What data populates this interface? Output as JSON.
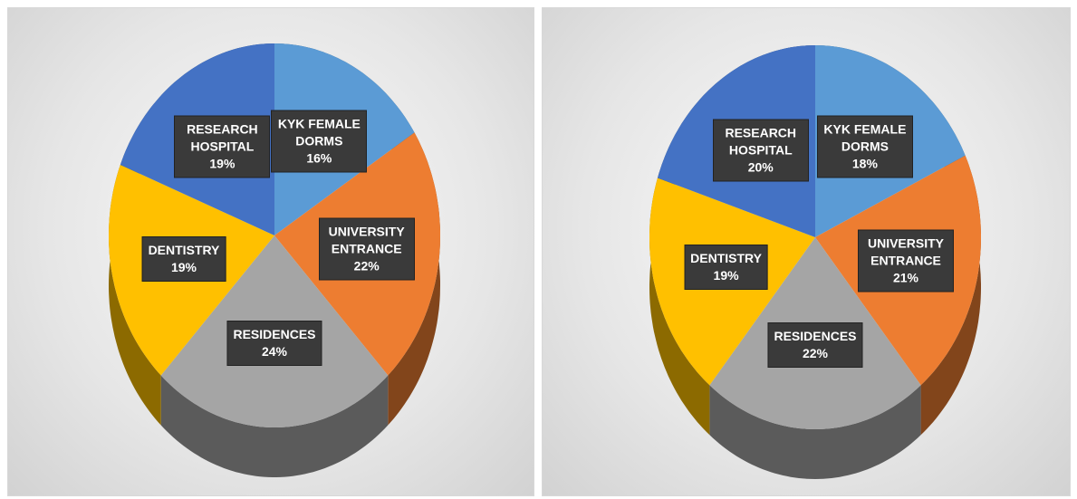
{
  "chart_data": [
    {
      "type": "pie",
      "categories": [
        "KYK FEMALE DORMS",
        "UNIVERSITY ENTRANCE",
        "RESIDENCES",
        "DENTISTRY",
        "RESEARCH HOSPITAL"
      ],
      "values": [
        16,
        22,
        24,
        19,
        19
      ],
      "value_labels": [
        "16%",
        "22%",
        "24%",
        "19%",
        "19%"
      ],
      "colors": [
        "#5b9bd5",
        "#ed7d31",
        "#a5a5a5",
        "#ffc000",
        "#4472c4"
      ]
    },
    {
      "type": "pie",
      "categories": [
        "KYK FEMALE DORMS",
        "UNIVERSITY ENTRANCE",
        "RESIDENCES",
        "DENTISTRY",
        "RESEARCH HOSPITAL"
      ],
      "values": [
        18,
        21,
        22,
        19,
        20
      ],
      "value_labels": [
        "18%",
        "21%",
        "22%",
        "19%",
        "20%"
      ],
      "colors": [
        "#5b9bd5",
        "#ed7d31",
        "#a5a5a5",
        "#ffc000",
        "#4472c4"
      ]
    }
  ]
}
